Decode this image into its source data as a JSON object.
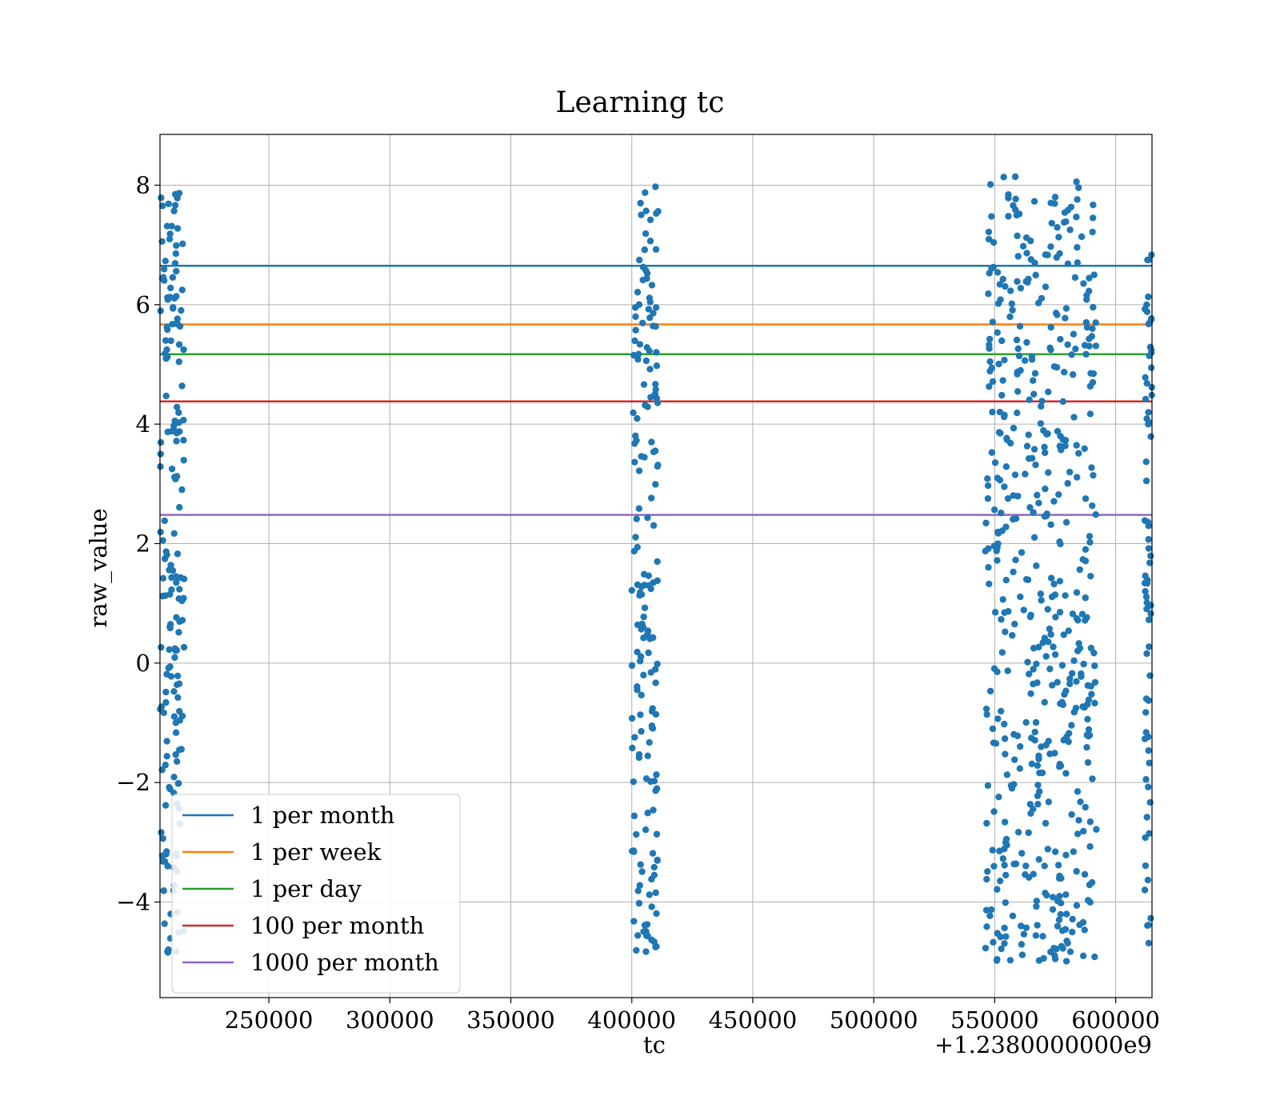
{
  "chart_data": {
    "type": "scatter",
    "title": "Learning tc",
    "xlabel": "tc",
    "ylabel": "raw_value",
    "x_offset_label": "+1.2380000000e9",
    "xlim": [
      205000,
      615000
    ],
    "ylim": [
      -5.6,
      8.85
    ],
    "x_ticks": [
      250000,
      300000,
      350000,
      400000,
      450000,
      500000,
      550000,
      600000
    ],
    "x_tick_labels": [
      "250000",
      "300000",
      "350000",
      "400000",
      "450000",
      "500000",
      "550000",
      "600000"
    ],
    "y_ticks": [
      -4,
      -2,
      0,
      2,
      4,
      6,
      8
    ],
    "y_tick_labels": [
      "−4",
      "−2",
      "0",
      "2",
      "4",
      "6",
      "8"
    ],
    "grid": true,
    "legend_placement": "lower-left",
    "scatter_color": "#1f77b4",
    "scatter_groups": [
      {
        "x_range": [
          205000,
          215000
        ],
        "y_range": [
          -4.9,
          7.9
        ],
        "count": 180
      },
      {
        "x_range": [
          400000,
          411000
        ],
        "y_range": [
          -4.9,
          8.0
        ],
        "count": 175
      },
      {
        "x_range": [
          546000,
          592000
        ],
        "y_range": [
          -5.0,
          8.2
        ],
        "count": 520
      },
      {
        "x_range": [
          612000,
          615000
        ],
        "y_range": [
          -4.9,
          7.5
        ],
        "count": 70
      }
    ],
    "series": [
      {
        "name": "1 per month",
        "type": "hline",
        "y": 6.65,
        "color": "#1f77b4"
      },
      {
        "name": "1 per week",
        "type": "hline",
        "y": 5.67,
        "color": "#ff7f0e"
      },
      {
        "name": "1 per day",
        "type": "hline",
        "y": 5.17,
        "color": "#2ca02c"
      },
      {
        "name": "100 per month",
        "type": "hline",
        "y": 4.38,
        "color": "#d62728"
      },
      {
        "name": "1000 per month",
        "type": "hline",
        "y": 2.48,
        "color": "#9467bd"
      }
    ]
  }
}
